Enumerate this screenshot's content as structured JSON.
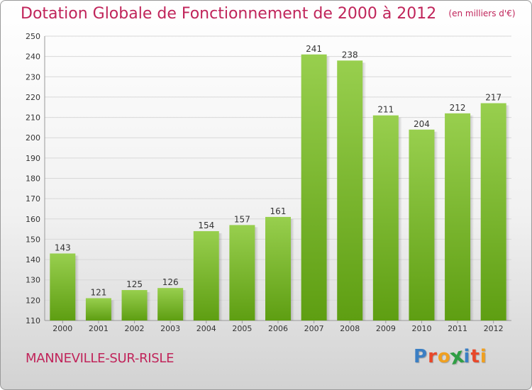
{
  "header": {
    "title": "Dotation Globale de Fonctionnement de 2000 à 2012",
    "unit": "(en milliers d'€)"
  },
  "footer": {
    "commune": "MANNEVILLE-SUR-RISLE",
    "logo_text": "Proxiti"
  },
  "colors": {
    "title": "#c0245a",
    "bar_top": "#98cf4e",
    "bar_bottom": "#5e9e12",
    "grid": "#d8d8d8",
    "logo_letters": [
      "#3b7fc4",
      "#e8482a",
      "#f0a020",
      "#2f9e44",
      "#3b7fc4",
      "#e8482a",
      "#f0a020"
    ]
  },
  "chart_data": {
    "type": "bar",
    "categories": [
      "2000",
      "2001",
      "2002",
      "2003",
      "2004",
      "2005",
      "2006",
      "2007",
      "2008",
      "2009",
      "2010",
      "2011",
      "2012"
    ],
    "values": [
      143,
      121,
      125,
      126,
      154,
      157,
      161,
      241,
      238,
      211,
      204,
      212,
      217
    ],
    "data_labels": [
      "143",
      "121",
      "125",
      "126",
      "154",
      "157",
      "161",
      "241",
      "238",
      "211",
      "204",
      "212",
      "217"
    ],
    "ylim": [
      110,
      250
    ],
    "yticks": [
      110,
      120,
      130,
      140,
      150,
      160,
      170,
      180,
      190,
      200,
      210,
      220,
      230,
      240,
      250
    ],
    "grid": true,
    "title": "Dotation Globale de Fonctionnement de 2000 à 2012",
    "unit": "(en milliers d'€)"
  }
}
